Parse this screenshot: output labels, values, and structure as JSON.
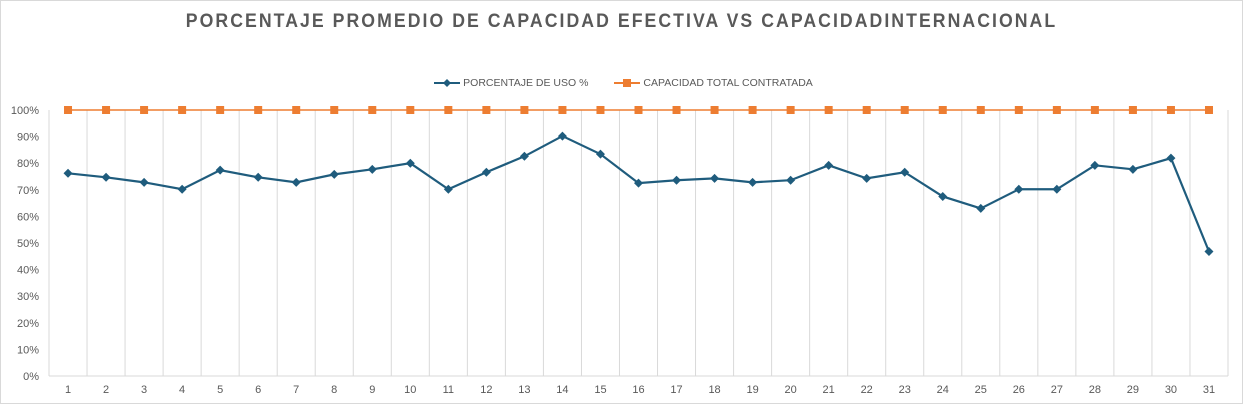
{
  "chart_data": {
    "type": "line",
    "title": "PORCENTAJE PROMEDIO DE CAPACIDAD EFECTIVA VS CAPACIDADINTERNACIONAL",
    "xlabel": "",
    "ylabel": "",
    "ylim": [
      0,
      100
    ],
    "yticks": [
      "0%",
      "10%",
      "20%",
      "30%",
      "40%",
      "50%",
      "60%",
      "70%",
      "80%",
      "90%",
      "100%"
    ],
    "categories": [
      "1",
      "2",
      "3",
      "4",
      "5",
      "6",
      "7",
      "8",
      "9",
      "10",
      "11",
      "12",
      "13",
      "14",
      "15",
      "16",
      "17",
      "18",
      "19",
      "20",
      "21",
      "22",
      "23",
      "24",
      "25",
      "26",
      "27",
      "28",
      "29",
      "30",
      "31"
    ],
    "grid": "vertical",
    "legend_position": "top",
    "series": [
      {
        "name": "PORCENTAJE DE USO %",
        "color": "#1f5c7d",
        "marker": "diamond",
        "values": [
          76.2,
          74.7,
          72.8,
          70.2,
          77.4,
          74.7,
          72.8,
          75.8,
          77.7,
          80.0,
          70.2,
          76.6,
          82.6,
          90.2,
          83.4,
          72.5,
          73.6,
          74.3,
          72.8,
          73.6,
          79.2,
          74.3,
          76.6,
          67.5,
          63.0,
          70.2,
          70.2,
          79.2,
          77.7,
          81.9,
          46.8
        ]
      },
      {
        "name": "CAPACIDAD TOTAL CONTRATADA",
        "color": "#ed7d31",
        "marker": "square",
        "values": [
          100,
          100,
          100,
          100,
          100,
          100,
          100,
          100,
          100,
          100,
          100,
          100,
          100,
          100,
          100,
          100,
          100,
          100,
          100,
          100,
          100,
          100,
          100,
          100,
          100,
          100,
          100,
          100,
          100,
          100,
          100
        ]
      }
    ]
  }
}
